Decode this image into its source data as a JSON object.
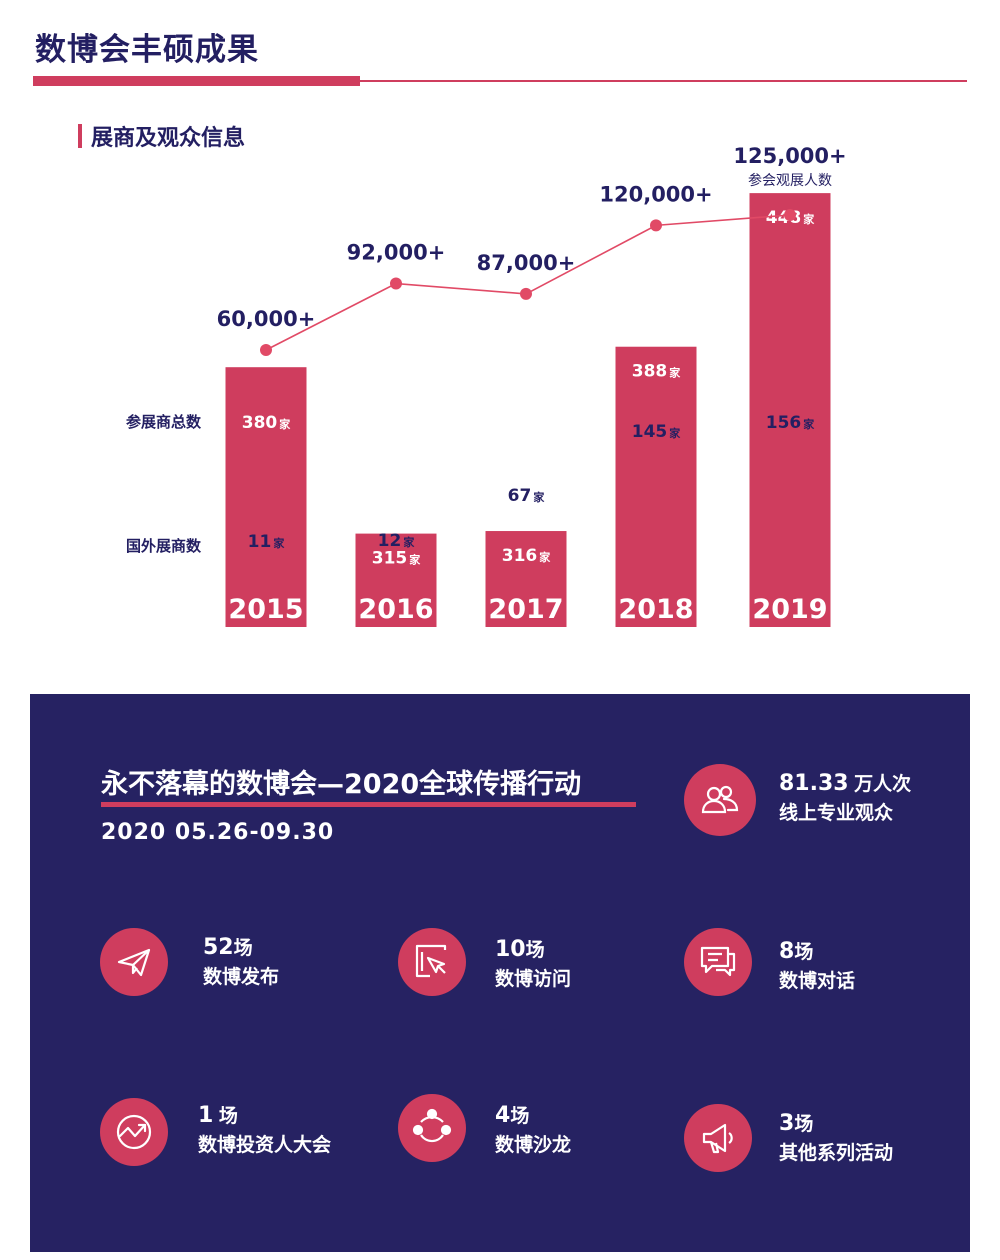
{
  "header": {
    "title": "数博会丰硕成果"
  },
  "section": {
    "title": "展商及观众信息"
  },
  "chart_labels": {
    "total_exhibitors": "参展商总数",
    "foreign_exhibitors": "国外展商数"
  },
  "chart_data": {
    "type": "bar",
    "categories": [
      "2015",
      "2016",
      "2017",
      "2018",
      "2019"
    ],
    "series": [
      {
        "name": "参展商总数",
        "values": [
          380,
          315,
          316,
          388,
          448
        ],
        "labels": [
          "380",
          "315",
          "316",
          "388",
          "448"
        ],
        "unit": "家"
      },
      {
        "name": "国外展商数",
        "values": [
          11,
          12,
          67,
          145,
          156
        ],
        "labels": [
          "11",
          "12",
          "67",
          "145",
          "156"
        ],
        "unit": "家"
      },
      {
        "name": "参会观展人数",
        "type": "line",
        "values": [
          60000,
          92000,
          87000,
          120000,
          125000
        ],
        "labels": [
          "60,000+",
          "92,000+",
          "87,000+",
          "120,000+",
          "125,000+"
        ]
      }
    ],
    "line_legend": "参会观展人数",
    "colors": {
      "bar": "#cf3d5e",
      "line": "#e14a66",
      "text_dark": "#231f62"
    }
  },
  "panel": {
    "title": "永不落幕的数博会—2020全球传播行动",
    "date": "2020 05.26-09.30",
    "highlight": {
      "number": "81.33",
      "unit": "万人次",
      "desc": "线上专业观众",
      "icon": "people-icon"
    },
    "stats": [
      {
        "number": "52",
        "unit": "场",
        "desc": "数博发布",
        "icon": "paper-plane-icon"
      },
      {
        "number": "10",
        "unit": "场",
        "desc": "数博访问",
        "icon": "cursor-click-icon"
      },
      {
        "number": "8",
        "unit": "场",
        "desc": "数博对话",
        "icon": "chat-icon"
      },
      {
        "number": "1",
        "unit": "场",
        "desc": "数博投资人大会",
        "icon": "trend-up-icon"
      },
      {
        "number": "4",
        "unit": "场",
        "desc": "数博沙龙",
        "icon": "network-icon"
      },
      {
        "number": "3",
        "unit": "场",
        "desc": "其他系列活动",
        "icon": "megaphone-icon"
      }
    ],
    "colors": {
      "background": "#262262",
      "accent": "#cf3d5e"
    }
  }
}
